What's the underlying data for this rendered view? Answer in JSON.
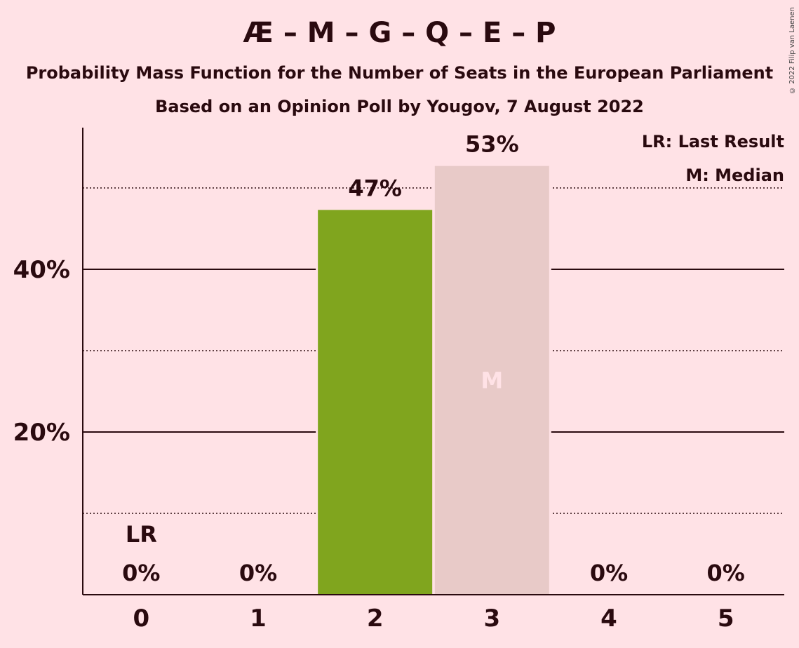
{
  "header": {
    "title": "Æ – M – G – Q – E – P",
    "subtitle1": "Probability Mass Function for the Number of Seats in the European Parliament",
    "subtitle2": "Based on an Opinion Poll by Yougov, 7 August 2022",
    "copyright": "© 2022 Filip van Laenen"
  },
  "legend": {
    "last_result": "LR: Last Result",
    "median": "M: Median"
  },
  "colors": {
    "background": "#FFE2E6",
    "bar_regular": "#80A51E",
    "bar_median": "#E8CAC8",
    "text": "#2A0A0F"
  },
  "chart_data": {
    "type": "bar",
    "categories": [
      "0",
      "1",
      "2",
      "3",
      "4",
      "5"
    ],
    "values": [
      0,
      0,
      47.3,
      52.7,
      0,
      0
    ],
    "value_labels": [
      "0%",
      "0%",
      "47%",
      "53%",
      "0%",
      "0%"
    ],
    "ylim": [
      0,
      57
    ],
    "major_ticks": [
      20,
      40
    ],
    "minor_ticks": [
      10,
      30,
      50
    ],
    "ytick_labels": [
      "20%",
      "40%"
    ],
    "last_result_index": 0,
    "last_result_label": "LR",
    "median_index": 3,
    "median_label": "M"
  }
}
